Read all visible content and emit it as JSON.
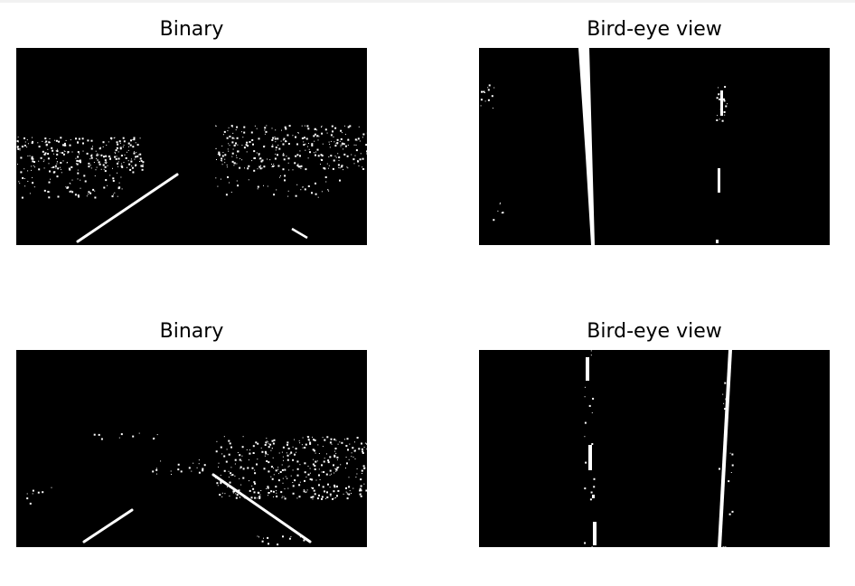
{
  "figure": {
    "panels": [
      {
        "title": "Binary",
        "kind": "binary"
      },
      {
        "title": "Bird-eye view",
        "kind": "birdseye"
      },
      {
        "title": "Binary",
        "kind": "binary"
      },
      {
        "title": "Bird-eye view",
        "kind": "birdseye"
      }
    ]
  },
  "colors": {
    "background": "#000000",
    "foreground": "#ffffff"
  }
}
